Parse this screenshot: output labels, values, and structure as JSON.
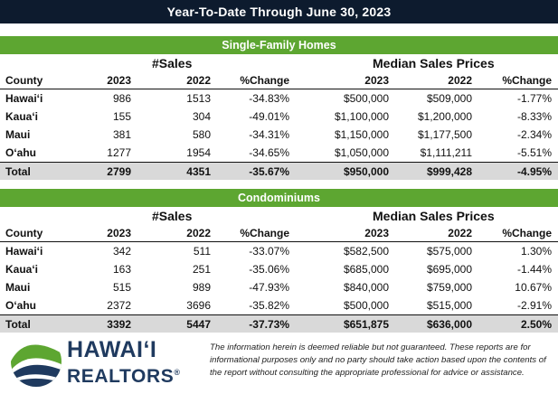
{
  "title": "Year-To-Date Through June 30, 2023",
  "sections": [
    {
      "heading": "Single-Family Homes",
      "group_sales": "#Sales",
      "group_median": "Median Sales Prices",
      "columns": {
        "county": "County",
        "s23": "2023",
        "s22": "2022",
        "chg": "%Change",
        "p23": "2023",
        "p22": "2022",
        "pchg": "%Change"
      },
      "rows": [
        {
          "county": "Hawai‘i",
          "s23": "986",
          "s22": "1513",
          "chg": "-34.83%",
          "p23": "$500,000",
          "p22": "$509,000",
          "pchg": "-1.77%"
        },
        {
          "county": "Kaua‘i",
          "s23": "155",
          "s22": "304",
          "chg": "-49.01%",
          "p23": "$1,100,000",
          "p22": "$1,200,000",
          "pchg": "-8.33%"
        },
        {
          "county": "Maui",
          "s23": "381",
          "s22": "580",
          "chg": "-34.31%",
          "p23": "$1,150,000",
          "p22": "$1,177,500",
          "pchg": "-2.34%"
        },
        {
          "county": "O‘ahu",
          "s23": "1277",
          "s22": "1954",
          "chg": "-34.65%",
          "p23": "$1,050,000",
          "p22": "$1,111,211",
          "pchg": "-5.51%"
        }
      ],
      "total": {
        "county": "Total",
        "s23": "2799",
        "s22": "4351",
        "chg": "-35.67%",
        "p23": "$950,000",
        "p22": "$999,428",
        "pchg": "-4.95%"
      }
    },
    {
      "heading": "Condominiums",
      "group_sales": "#Sales",
      "group_median": "Median Sales Prices",
      "columns": {
        "county": "County",
        "s23": "2023",
        "s22": "2022",
        "chg": "%Change",
        "p23": "2023",
        "p22": "2022",
        "pchg": "%Change"
      },
      "rows": [
        {
          "county": "Hawai‘i",
          "s23": "342",
          "s22": "511",
          "chg": "-33.07%",
          "p23": "$582,500",
          "p22": "$575,000",
          "pchg": "1.30%"
        },
        {
          "county": "Kaua‘i",
          "s23": "163",
          "s22": "251",
          "chg": "-35.06%",
          "p23": "$685,000",
          "p22": "$695,000",
          "pchg": "-1.44%"
        },
        {
          "county": "Maui",
          "s23": "515",
          "s22": "989",
          "chg": "-47.93%",
          "p23": "$840,000",
          "p22": "$759,000",
          "pchg": "10.67%"
        },
        {
          "county": "O‘ahu",
          "s23": "2372",
          "s22": "3696",
          "chg": "-35.82%",
          "p23": "$500,000",
          "p22": "$515,000",
          "pchg": "-2.91%"
        }
      ],
      "total": {
        "county": "Total",
        "s23": "3392",
        "s22": "5447",
        "chg": "-37.73%",
        "p23": "$651,875",
        "p22": "$636,000",
        "pchg": "2.50%"
      }
    }
  ],
  "logo": {
    "line1": "HAWAI‘I",
    "line2": "REALTORS",
    "mark": "®",
    "icon": "mountain-wave-logo-icon"
  },
  "disclaimer": "The information herein is deemed reliable but not guaranteed. These reports are for informational purposes only and no party should take action based upon the contents of the report without consulting the appropriate professional for advice or assistance.",
  "colors": {
    "title_bg": "#0d1b2e",
    "section_bg": "#5da631",
    "total_bg": "#d9d9d9",
    "logo_navy": "#1f3a5f",
    "logo_green": "#5da631"
  }
}
